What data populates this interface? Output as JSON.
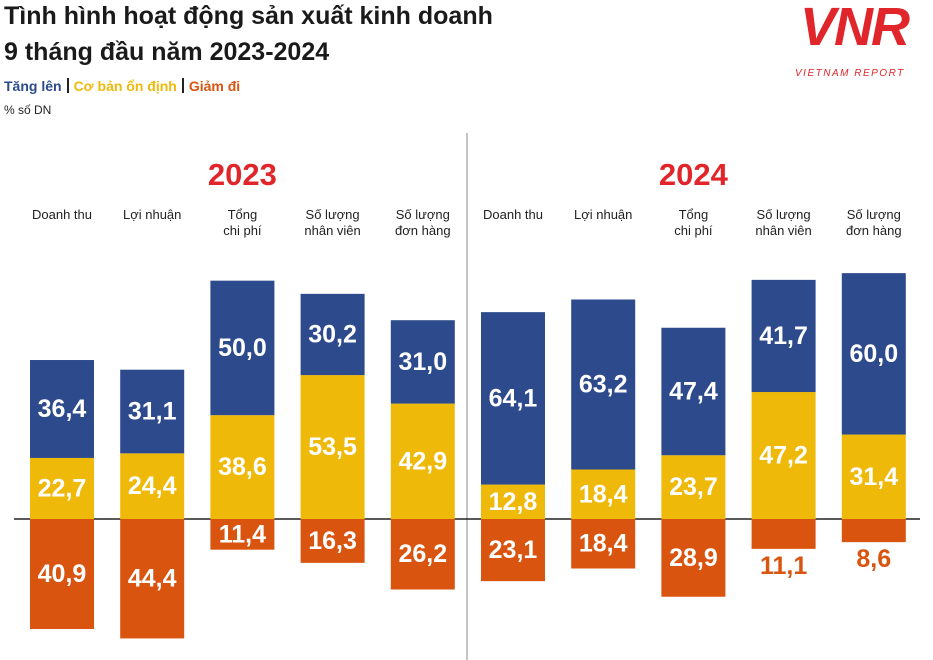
{
  "header": {
    "title_lines": [
      "Tình hình hoạt động sản xuất kinh doanh",
      "9 tháng đầu năm 2023-2024"
    ],
    "unit": "% số DN"
  },
  "logo": {
    "mark": "VNR",
    "text": "VIETNAM REPORT"
  },
  "chart_data": [
    {
      "type": "bar",
      "title": "2023",
      "categories": [
        "Doanh thu",
        "Lợi nhuận",
        "Tổng\nchi phí",
        "Số lượng\nnhân viên",
        "Số lượng\nđơn hàng"
      ],
      "series": [
        {
          "name": "Tăng lên",
          "color": "#2c4a8c",
          "values": [
            36.4,
            31.1,
            50.0,
            30.2,
            31.0
          ],
          "value_labels": [
            "36,4",
            "31,1",
            "50,0",
            "30,2",
            "31,0"
          ]
        },
        {
          "name": "Cơ bản ổn định",
          "color": "#efb90a",
          "values": [
            22.7,
            24.4,
            38.6,
            53.5,
            42.9
          ],
          "value_labels": [
            "22,7",
            "24,4",
            "38,6",
            "53,5",
            "42,9"
          ]
        },
        {
          "name": "Giảm đi",
          "color": "#d9540f",
          "values": [
            40.9,
            44.4,
            11.4,
            16.3,
            26.2
          ],
          "value_labels": [
            "40,9",
            "44,4",
            "11,4",
            "16,3",
            "26,2"
          ]
        }
      ]
    },
    {
      "type": "bar",
      "title": "2024",
      "categories": [
        "Doanh thu",
        "Lợi nhuận",
        "Tổng\nchi phí",
        "Số lượng\nnhân viên",
        "Số lượng\nđơn hàng"
      ],
      "series": [
        {
          "name": "Tăng lên",
          "color": "#2c4a8c",
          "values": [
            64.1,
            63.2,
            47.4,
            41.7,
            60.0
          ],
          "value_labels": [
            "64,1",
            "63,2",
            "47,4",
            "41,7",
            "60,0"
          ]
        },
        {
          "name": "Cơ bản ổn định",
          "color": "#efb90a",
          "values": [
            12.8,
            18.4,
            23.7,
            47.2,
            31.4
          ],
          "value_labels": [
            "12,8",
            "18,4",
            "23,7",
            "47,2",
            "31,4"
          ]
        },
        {
          "name": "Giảm đi",
          "color": "#d9540f",
          "values": [
            23.1,
            18.4,
            28.9,
            11.1,
            8.6
          ],
          "value_labels": [
            "23,1",
            "18,4",
            "28,9",
            "11,1",
            "8,6"
          ]
        }
      ]
    }
  ]
}
